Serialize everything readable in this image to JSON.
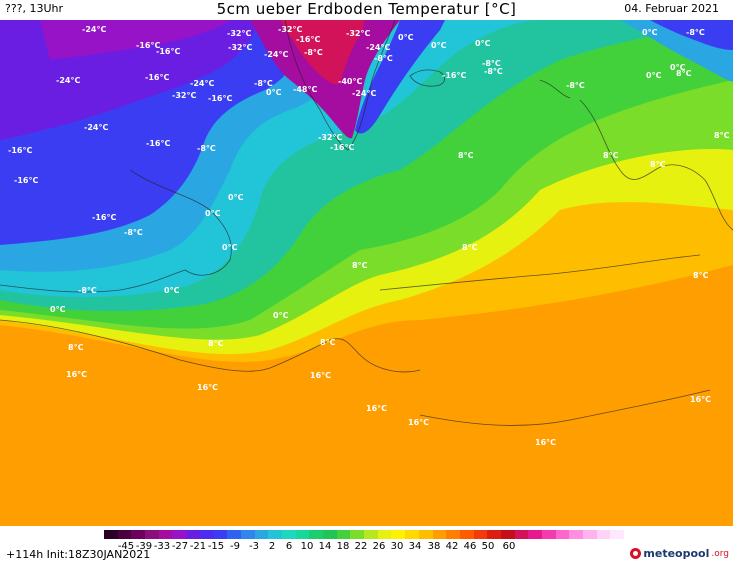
{
  "header": {
    "left": "???, 13Uhr",
    "title": "5cm ueber Erdboden Temperatur [°C]",
    "right": "04. Februar 2021"
  },
  "footer": {
    "left": "+114h  Init:18Z30JAN2021",
    "logo": "meteopool",
    "logo_suffix": ".org"
  },
  "legend": {
    "ticks": [
      "-45",
      "-39",
      "-33",
      "-27",
      "-21",
      "-15",
      "-9",
      "-3",
      "2",
      "6",
      "10",
      "14",
      "18",
      "22",
      "26",
      "30",
      "34",
      "38",
      "42",
      "46",
      "50",
      "60"
    ],
    "colors": [
      "#2b0024",
      "#4a003d",
      "#6d005c",
      "#8c0e7c",
      "#a50da0",
      "#9613c8",
      "#6a1ee2",
      "#4b2cf0",
      "#3a3df2",
      "#2e63f0",
      "#2f86ec",
      "#2aa6e2",
      "#22c4d8",
      "#1ed7c0",
      "#15d89a",
      "#1ccf6e",
      "#22c454",
      "#43d13b",
      "#7add2a",
      "#b5e81f",
      "#e6f10f",
      "#fff200",
      "#ffd900",
      "#ffbd00",
      "#ff9e00",
      "#ff7f00",
      "#ff5c00",
      "#f23a0a",
      "#dc1f10",
      "#c40f1a",
      "#d2135a",
      "#e61a8c",
      "#f53aaf",
      "#ff66cc",
      "#ff8ee0",
      "#ffb3ee",
      "#ffd3f7",
      "#ffe8fb"
    ]
  },
  "labels": [
    "-24°C",
    "-16°C",
    "-16°C",
    "-32°C",
    "-32°C",
    "-32°C",
    "-16°C",
    "-24°C",
    "-8°C",
    "-32°C",
    "-24°C",
    "0°C",
    "0°C",
    "-8°C",
    "-16°C",
    "-24°C",
    "-24°C",
    "-32°C",
    "-16°C",
    "-8°C",
    "0°C",
    "-48°C",
    "-40°C",
    "-24°C",
    "-8°C",
    "0°C",
    "0°C",
    "-8°C",
    "-16°C",
    "-8°C",
    "0°C",
    "0°C",
    "8°C",
    "-8°C",
    "-16°C",
    "-24°C",
    "-16°C",
    "-32°C",
    "-16°C",
    "8°C",
    "8°C",
    "8°C",
    "8°C",
    "-16°C",
    "-8°C",
    "0°C",
    "0°C",
    "-16°C",
    "-8°C",
    "0°C",
    "0°C",
    "8°C",
    "8°C",
    "8°C",
    "-8°C",
    "0°C",
    "0°C",
    "8°C",
    "8°C",
    "8°C",
    "16°C",
    "16°C",
    "16°C",
    "16°C",
    "16°C",
    "16°C",
    "16°C"
  ]
}
